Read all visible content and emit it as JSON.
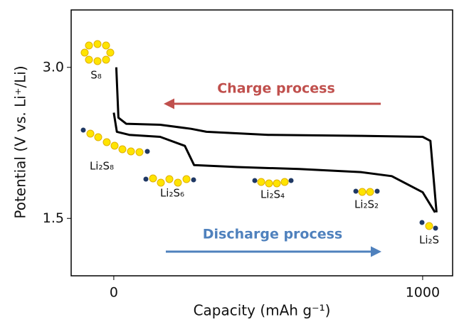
{
  "chart_data": {
    "type": "line",
    "x_label": "Capacity (mAh g⁻¹)",
    "y_label": "Potential (V vs. Li⁺/Li)",
    "xlim": [
      -138,
      1097
    ],
    "ylim": [
      0.93,
      3.57
    ],
    "xticks": [
      0,
      1000
    ],
    "yticks": [
      1.5,
      {
        "value": 3.0,
        "label": "3.0"
      }
    ],
    "series": [
      {
        "color": "#000000",
        "x": [
          0,
          10,
          50,
          150,
          230,
          260,
          400,
          600,
          800,
          900,
          1000,
          1040
        ],
        "values": [
          2.55,
          2.36,
          2.33,
          2.31,
          2.22,
          2.03,
          2.01,
          1.99,
          1.96,
          1.92,
          1.76,
          1.56
        ]
      },
      {
        "color": "#000000",
        "x": [
          8,
          15,
          40,
          150,
          250,
          300,
          500,
          800,
          1000,
          1025,
          1045
        ],
        "values": [
          3.0,
          2.5,
          2.44,
          2.43,
          2.39,
          2.36,
          2.33,
          2.32,
          2.31,
          2.27,
          1.56
        ]
      }
    ],
    "annotations": [
      {
        "text": "Charge process",
        "color": "#c0504d"
      },
      {
        "text": "Discharge process",
        "color": "#4f81bd"
      }
    ],
    "species": [
      "S₈",
      "Li₂S₈",
      "Li₂S₆",
      "Li₂S₄",
      "Li₂S₂",
      "Li₂S"
    ]
  }
}
